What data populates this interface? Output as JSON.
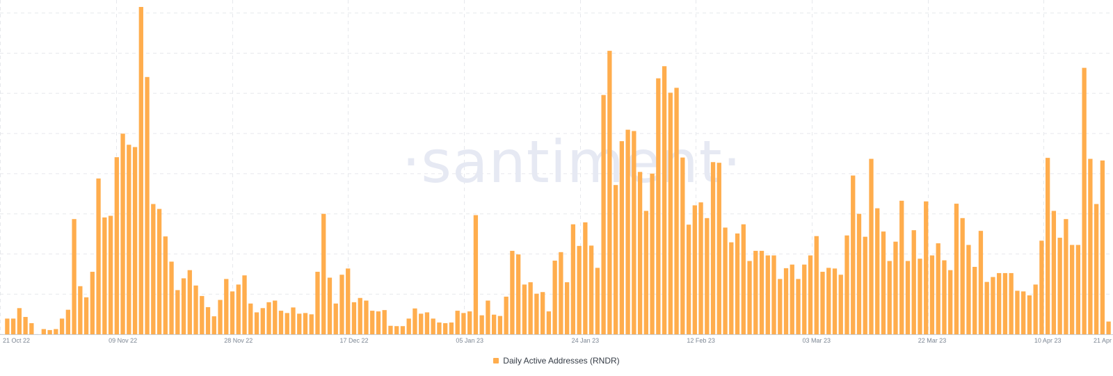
{
  "watermark": "·santiment·",
  "colors": {
    "bar": "#ffad4d",
    "grid": "#e6e8ec",
    "axis": "#c9cdd4",
    "tick": "#7d8794"
  },
  "legend": {
    "label": "Daily Active Addresses (RNDR)",
    "placement": "bottom-center"
  },
  "chart_data": {
    "type": "bar",
    "title": "",
    "xlabel": "",
    "ylabel": "",
    "grid": true,
    "y_axis_labels_visible": false,
    "ylim": [
      0,
      100
    ],
    "x_tick_labels": [
      "21 Oct 22",
      "09 Nov 22",
      "28 Nov 22",
      "17 Dec 22",
      "05 Jan 23",
      "24 Jan 23",
      "12 Feb 23",
      "03 Mar 23",
      "22 Mar 23",
      "10 Apr 23",
      "21 Apr"
    ],
    "x_tick_indices": [
      0,
      19,
      38,
      57,
      76,
      95,
      114,
      133,
      152,
      171,
      182
    ],
    "series": [
      {
        "name": "Daily Active Addresses (RNDR)",
        "values": [
          4.8,
          4.8,
          8.0,
          5.3,
          3.4,
          0,
          1.6,
          1.3,
          1.6,
          4.8,
          7.5,
          35.2,
          14.7,
          11.3,
          19.1,
          47.6,
          35.7,
          36.2,
          54.1,
          61.3,
          57.9,
          57.2,
          100,
          78.6,
          39.8,
          38.3,
          29.9,
          22.2,
          13.5,
          17.1,
          19.6,
          14.9,
          11.7,
          8.3,
          5.5,
          10.5,
          16.9,
          13.1,
          15.2,
          18.0,
          9.4,
          6.7,
          8.0,
          9.8,
          10.3,
          7.2,
          6.5,
          8.2,
          6.3,
          6.5,
          6.1,
          19.1,
          36.8,
          17.3,
          9.4,
          18.2,
          20.1,
          9.8,
          11.1,
          10.3,
          7.2,
          7.0,
          7.4,
          2.6,
          2.5,
          2.5,
          4.8,
          7.9,
          6.3,
          6.7,
          4.8,
          3.6,
          3.4,
          3.6,
          7.2,
          6.5,
          7.0,
          36.4,
          5.8,
          10.3,
          6.0,
          5.6,
          11.5,
          25.5,
          24.4,
          15.2,
          15.9,
          12.4,
          12.9,
          7.0,
          22.5,
          25.1,
          15.9,
          33.6,
          27.0,
          34.2,
          27.1,
          20.3,
          73.1,
          86.6,
          45.6,
          59.0,
          62.5,
          62.1,
          49.6,
          37.7,
          49.1,
          78.2,
          81.9,
          73.8,
          75.3,
          54.0,
          33.5,
          39.4,
          40.3,
          35.5,
          52.6,
          52.4,
          32.6,
          28.1,
          30.8,
          33.6,
          22.4,
          25.5,
          25.5,
          24.1,
          24.1,
          16.9,
          20.2,
          21.3,
          16.9,
          21.3,
          24.1,
          30.0,
          19.1,
          20.3,
          20.1,
          18.2,
          30.2,
          48.5,
          36.8,
          29.8,
          53.6,
          38.5,
          31.4,
          22.4,
          28.3,
          40.8,
          22.4,
          31.8,
          23.1,
          40.6,
          24.1,
          27.8,
          22.6,
          19.6,
          39.9,
          35.5,
          27.3,
          20.6,
          31.6,
          16.0,
          17.5,
          18.7,
          18.7,
          18.7,
          13.3,
          13.1,
          11.9,
          15.2,
          28.6,
          53.9,
          37.7,
          29.5,
          35.2,
          27.3,
          27.3,
          81.4,
          53.6,
          39.8,
          53.1,
          3.9
        ]
      }
    ]
  }
}
